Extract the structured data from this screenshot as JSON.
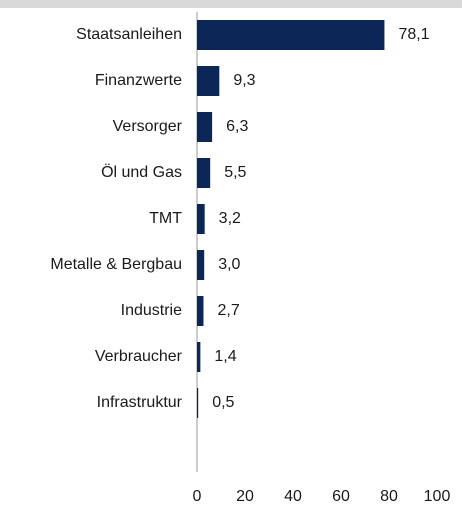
{
  "chart_data": {
    "type": "bar",
    "orientation": "horizontal",
    "categories": [
      "Staatsanleihen",
      "Finanzwerte",
      "Versorger",
      "Öl und Gas",
      "TMT",
      "Metalle & Bergbau",
      "Industrie",
      "Verbraucher",
      "Infrastruktur"
    ],
    "values": [
      78.1,
      9.3,
      6.3,
      5.5,
      3.2,
      3.0,
      2.7,
      1.4,
      0.5
    ],
    "value_labels": [
      "78,1",
      "9,3",
      "6,3",
      "5,5",
      "3,2",
      "3,0",
      "2,7",
      "1,4",
      "0,5"
    ],
    "color": "#0c2757",
    "xlim": [
      0,
      100
    ],
    "xticks": [
      0,
      20,
      40,
      60,
      80,
      100
    ]
  }
}
